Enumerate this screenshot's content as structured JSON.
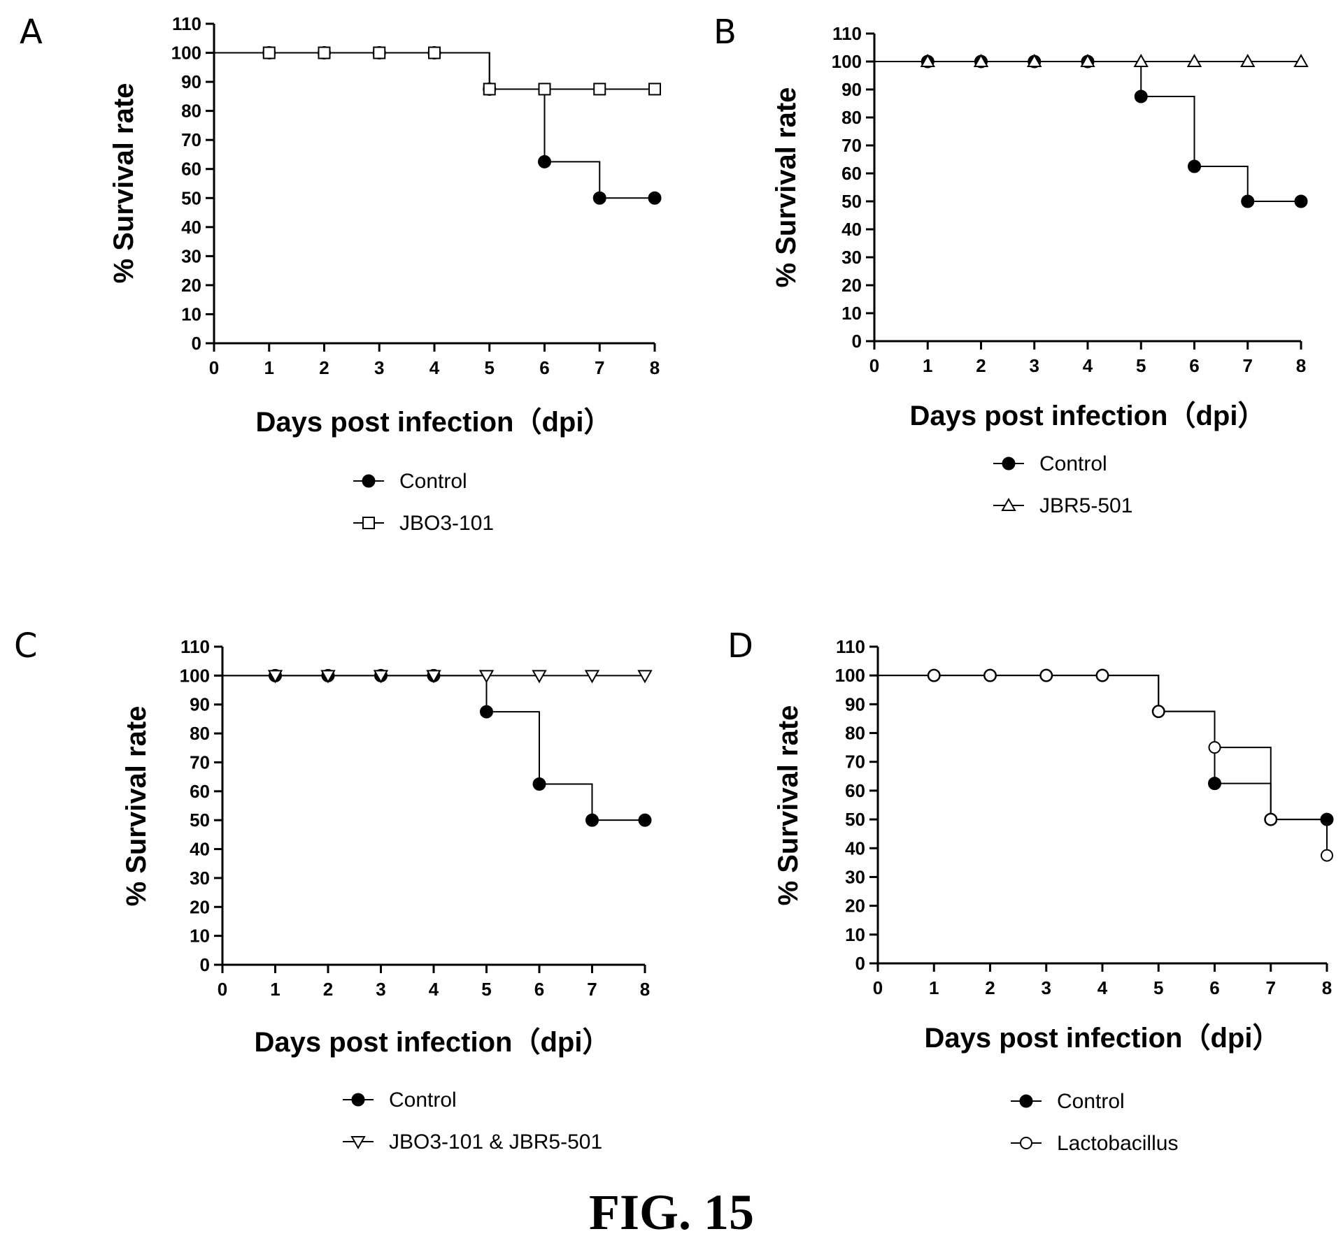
{
  "figure": {
    "caption": "FIG. 15"
  },
  "chart_data": [
    {
      "panel": "A",
      "type": "line",
      "subtype": "kaplan-meier",
      "xlabel": "Days post infection（dpi）",
      "ylabel": "% Survival rate",
      "xlim": [
        0,
        8
      ],
      "ylim": [
        0,
        110
      ],
      "xticks": [
        0,
        1,
        2,
        3,
        4,
        5,
        6,
        7,
        8
      ],
      "yticks": [
        0,
        10,
        20,
        30,
        40,
        50,
        60,
        70,
        80,
        90,
        100,
        110
      ],
      "grid": false,
      "legend_position": "below",
      "series": [
        {
          "name": "Control",
          "marker": "filled-circle",
          "x": [
            0,
            1,
            2,
            3,
            4,
            5,
            6,
            7,
            8
          ],
          "y": [
            100,
            100,
            100,
            100,
            100,
            87.5,
            62.5,
            50,
            50
          ],
          "markers_at": [
            1,
            2,
            3,
            4,
            5,
            6,
            7,
            8
          ]
        },
        {
          "name": "JBO3-101",
          "marker": "open-square",
          "x": [
            0,
            1,
            2,
            3,
            4,
            5,
            6,
            7,
            8
          ],
          "y": [
            100,
            100,
            100,
            100,
            100,
            87.5,
            87.5,
            87.5,
            87.5
          ],
          "markers_at": [
            1,
            2,
            3,
            4,
            5,
            6,
            7,
            8
          ]
        }
      ]
    },
    {
      "panel": "B",
      "type": "line",
      "subtype": "kaplan-meier",
      "xlabel": "Days post infection（dpi）",
      "ylabel": "% Survival rate",
      "xlim": [
        0,
        8
      ],
      "ylim": [
        0,
        110
      ],
      "xticks": [
        0,
        1,
        2,
        3,
        4,
        5,
        6,
        7,
        8
      ],
      "yticks": [
        0,
        10,
        20,
        30,
        40,
        50,
        60,
        70,
        80,
        90,
        100,
        110
      ],
      "grid": false,
      "legend_position": "below",
      "series": [
        {
          "name": "Control",
          "marker": "filled-circle",
          "x": [
            0,
            1,
            2,
            3,
            4,
            5,
            6,
            7,
            8
          ],
          "y": [
            100,
            100,
            100,
            100,
            100,
            87.5,
            62.5,
            50,
            50
          ],
          "markers_at": [
            1,
            2,
            3,
            4,
            5,
            6,
            7,
            8
          ]
        },
        {
          "name": "JBR5-501",
          "marker": "open-triangle-up",
          "x": [
            0,
            1,
            2,
            3,
            4,
            5,
            6,
            7,
            8
          ],
          "y": [
            100,
            100,
            100,
            100,
            100,
            100,
            100,
            100,
            100
          ],
          "markers_at": [
            1,
            2,
            3,
            4,
            5,
            6,
            7,
            8
          ]
        }
      ]
    },
    {
      "panel": "C",
      "type": "line",
      "subtype": "kaplan-meier",
      "xlabel": "Days post infection（dpi）",
      "ylabel": "% Survival rate",
      "xlim": [
        0,
        8
      ],
      "ylim": [
        0,
        110
      ],
      "xticks": [
        0,
        1,
        2,
        3,
        4,
        5,
        6,
        7,
        8
      ],
      "yticks": [
        0,
        10,
        20,
        30,
        40,
        50,
        60,
        70,
        80,
        90,
        100,
        110
      ],
      "grid": false,
      "legend_position": "below",
      "series": [
        {
          "name": "Control",
          "marker": "filled-circle",
          "x": [
            0,
            1,
            2,
            3,
            4,
            5,
            6,
            7,
            8
          ],
          "y": [
            100,
            100,
            100,
            100,
            100,
            87.5,
            62.5,
            50,
            50
          ],
          "markers_at": [
            1,
            2,
            3,
            4,
            5,
            6,
            7,
            8
          ]
        },
        {
          "name": "JBO3-101 & JBR5-501",
          "marker": "open-triangle-down",
          "x": [
            0,
            1,
            2,
            3,
            4,
            5,
            6,
            7,
            8
          ],
          "y": [
            100,
            100,
            100,
            100,
            100,
            100,
            100,
            100,
            100
          ],
          "markers_at": [
            1,
            2,
            3,
            4,
            5,
            6,
            7,
            8
          ]
        }
      ]
    },
    {
      "panel": "D",
      "type": "line",
      "subtype": "kaplan-meier",
      "xlabel": "Days post infection（dpi）",
      "ylabel": "% Survival rate",
      "xlim": [
        0,
        8
      ],
      "ylim": [
        0,
        110
      ],
      "xticks": [
        0,
        1,
        2,
        3,
        4,
        5,
        6,
        7,
        8
      ],
      "yticks": [
        0,
        10,
        20,
        30,
        40,
        50,
        60,
        70,
        80,
        90,
        100,
        110
      ],
      "grid": false,
      "legend_position": "below",
      "series": [
        {
          "name": "Control",
          "marker": "filled-circle",
          "x": [
            0,
            1,
            2,
            3,
            4,
            5,
            6,
            7,
            8
          ],
          "y": [
            100,
            100,
            100,
            100,
            100,
            87.5,
            62.5,
            50,
            50
          ],
          "markers_at": [
            1,
            2,
            3,
            4,
            5,
            6,
            7,
            8
          ]
        },
        {
          "name": "Lactobacillus",
          "marker": "open-circle",
          "x": [
            0,
            1,
            2,
            3,
            4,
            5,
            6,
            7,
            8
          ],
          "y": [
            100,
            100,
            100,
            100,
            100,
            87.5,
            75,
            50,
            37.5
          ],
          "markers_at": [
            1,
            2,
            3,
            4,
            5,
            6,
            7,
            8
          ]
        }
      ]
    }
  ]
}
